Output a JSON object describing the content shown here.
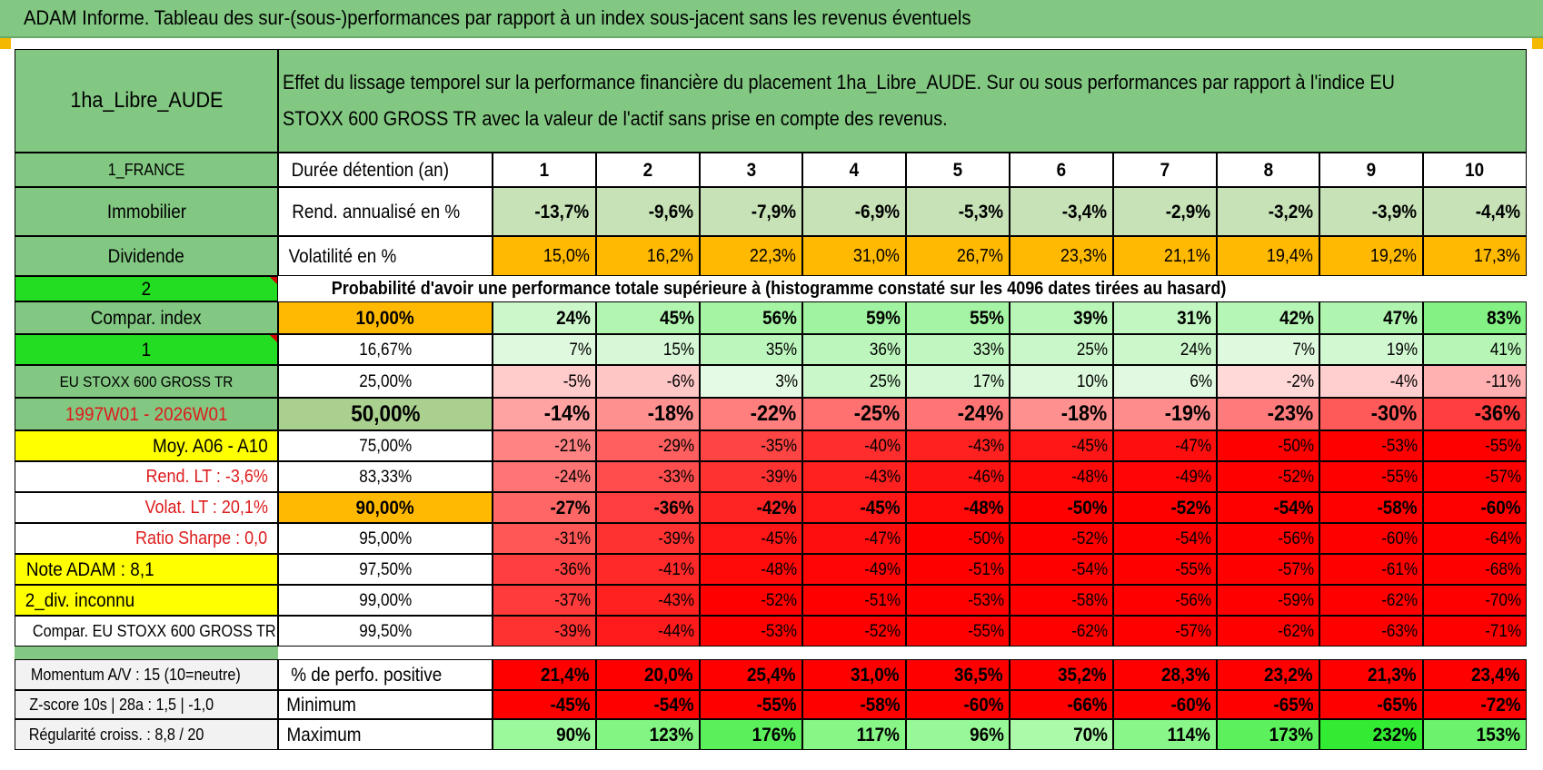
{
  "title": "ADAM Informe. Tableau des sur-(sous-)performances par rapport à un index sous-jacent sans les revenus éventuels",
  "header": {
    "asset_name": "1ha_Libre_AUDE",
    "description": "Effet du lissage temporel sur la performance financière du placement 1ha_Libre_AUDE. Sur ou sous performances par rapport à l'indice EU STOXX 600 GROSS TR avec la valeur de l'actif sans prise en compte des revenus."
  },
  "left_labels": [
    "1_FRANCE",
    "Immobilier",
    "Dividende",
    "2",
    "Compar. index",
    "1",
    "EU STOXX 600 GROSS TR",
    "1997W01 - 2026W01",
    "Moy. A06 - A10",
    "Rend. LT :    -3,6%",
    "Volat. LT :    20,1%",
    "Ratio Sharpe :     0,0",
    "Note ADAM : 8,1",
    "2_div. inconnu",
    "Compar. EU STOXX 600 GROSS TR"
  ],
  "years": [
    "1",
    "2",
    "3",
    "4",
    "5",
    "6",
    "7",
    "8",
    "9",
    "10"
  ],
  "duree_label": "Durée détention (an)",
  "rend_label": "Rend. annualisé en %",
  "rend_values": [
    "-13,7%",
    "-9,6%",
    "-7,9%",
    "-6,9%",
    "-5,3%",
    "-3,4%",
    "-2,9%",
    "-3,2%",
    "-3,9%",
    "-4,4%"
  ],
  "vol_label": "Volatilité en %",
  "vol_values": [
    "15,0%",
    "16,2%",
    "22,3%",
    "31,0%",
    "26,7%",
    "23,3%",
    "21,1%",
    "19,4%",
    "19,2%",
    "17,3%"
  ],
  "proba_title": "Probabilité d'avoir une performance totale supérieure à (histogramme constaté sur les 4096 dates tirées au hasard)",
  "quantiles": [
    {
      "label": "10,00%",
      "values": [
        "24%",
        "45%",
        "56%",
        "59%",
        "55%",
        "39%",
        "31%",
        "42%",
        "47%",
        "83%"
      ]
    },
    {
      "label": "16,67%",
      "values": [
        "7%",
        "15%",
        "35%",
        "36%",
        "33%",
        "25%",
        "24%",
        "7%",
        "19%",
        "41%"
      ]
    },
    {
      "label": "25,00%",
      "values": [
        "-5%",
        "-6%",
        "3%",
        "25%",
        "17%",
        "10%",
        "6%",
        "-2%",
        "-4%",
        "-11%"
      ]
    },
    {
      "label": "50,00%",
      "values": [
        "-14%",
        "-18%",
        "-22%",
        "-25%",
        "-24%",
        "-18%",
        "-19%",
        "-23%",
        "-30%",
        "-36%"
      ]
    },
    {
      "label": "75,00%",
      "values": [
        "-21%",
        "-29%",
        "-35%",
        "-40%",
        "-43%",
        "-45%",
        "-47%",
        "-50%",
        "-53%",
        "-55%"
      ]
    },
    {
      "label": "83,33%",
      "values": [
        "-24%",
        "-33%",
        "-39%",
        "-43%",
        "-46%",
        "-48%",
        "-49%",
        "-52%",
        "-55%",
        "-57%"
      ]
    },
    {
      "label": "90,00%",
      "values": [
        "-27%",
        "-36%",
        "-42%",
        "-45%",
        "-48%",
        "-50%",
        "-52%",
        "-54%",
        "-58%",
        "-60%"
      ]
    },
    {
      "label": "95,00%",
      "values": [
        "-31%",
        "-39%",
        "-45%",
        "-47%",
        "-50%",
        "-52%",
        "-54%",
        "-56%",
        "-60%",
        "-64%"
      ]
    },
    {
      "label": "97,50%",
      "values": [
        "-36%",
        "-41%",
        "-48%",
        "-49%",
        "-51%",
        "-54%",
        "-55%",
        "-57%",
        "-61%",
        "-68%"
      ]
    },
    {
      "label": "99,00%",
      "values": [
        "-37%",
        "-43%",
        "-52%",
        "-51%",
        "-53%",
        "-58%",
        "-56%",
        "-59%",
        "-62%",
        "-70%"
      ]
    },
    {
      "label": "99,50%",
      "values": [
        "-39%",
        "-44%",
        "-53%",
        "-52%",
        "-55%",
        "-62%",
        "-57%",
        "-62%",
        "-63%",
        "-71%"
      ]
    }
  ],
  "stats": [
    {
      "side": "Momentum A/V : 15 (10=neutre)",
      "label": "% de perfo. positive",
      "values": [
        "21,4%",
        "20,0%",
        "25,4%",
        "31,0%",
        "36,5%",
        "35,2%",
        "28,3%",
        "23,2%",
        "21,3%",
        "23,4%"
      ]
    },
    {
      "side": "Z-score 10s | 28a : 1,5 | -1,0",
      "label": "Minimum",
      "values": [
        "-45%",
        "-54%",
        "-55%",
        "-58%",
        "-60%",
        "-66%",
        "-60%",
        "-65%",
        "-65%",
        "-72%"
      ]
    },
    {
      "side": "Régularité croiss. : 8,8 / 20",
      "label": "Maximum",
      "values": [
        "90%",
        "123%",
        "176%",
        "117%",
        "96%",
        "70%",
        "114%",
        "173%",
        "232%",
        "153%"
      ]
    }
  ],
  "colors": {
    "header_green": "#82c882",
    "bright_green": "#22dd22",
    "yellow": "#ffff00",
    "orange": "#ffb900",
    "red": "#ff0000",
    "text_red": "#dd1c1c"
  }
}
